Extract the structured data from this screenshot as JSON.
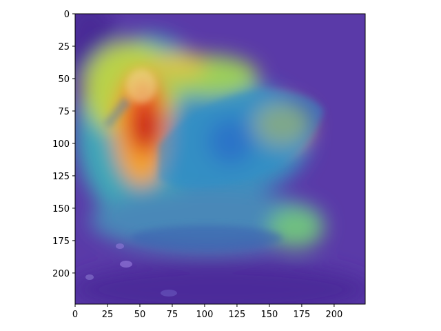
{
  "figure": {
    "image_subject": "duck on water with saliency heatmap overlay",
    "colormap": "jet",
    "background_color": "#ffffff"
  },
  "axes": {
    "x_ticks": [
      "0",
      "25",
      "50",
      "75",
      "100",
      "125",
      "150",
      "175",
      "200"
    ],
    "y_ticks": [
      "0",
      "25",
      "50",
      "75",
      "100",
      "125",
      "150",
      "175",
      "200"
    ],
    "x_tick_values": [
      0,
      25,
      50,
      75,
      100,
      125,
      150,
      175,
      200
    ],
    "y_tick_values": [
      0,
      25,
      50,
      75,
      100,
      125,
      150,
      175,
      200
    ],
    "xlim": [
      0,
      224
    ],
    "ylim": [
      0,
      224
    ],
    "y_inverted": true
  }
}
